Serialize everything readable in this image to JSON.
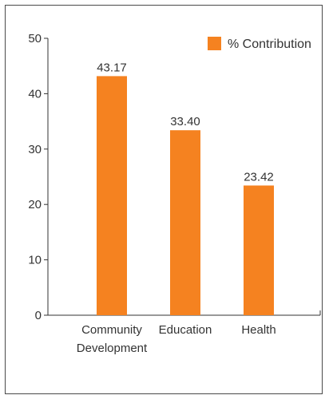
{
  "chart_data": {
    "type": "bar",
    "categories": [
      [
        "Community",
        "Development"
      ],
      [
        "Education"
      ],
      [
        "Health"
      ]
    ],
    "series": [
      {
        "name": "% Contribution",
        "values": [
          43.17,
          33.4,
          23.42
        ],
        "value_labels": [
          "43.17",
          "33.40",
          "23.42"
        ]
      }
    ],
    "ylim": [
      0,
      50
    ],
    "yticks": [
      0,
      10,
      20,
      30,
      40,
      50
    ],
    "title": "",
    "xlabel": "",
    "ylabel": "",
    "grid": false,
    "legend_position": "top-right",
    "bar_color": "#f58220"
  }
}
